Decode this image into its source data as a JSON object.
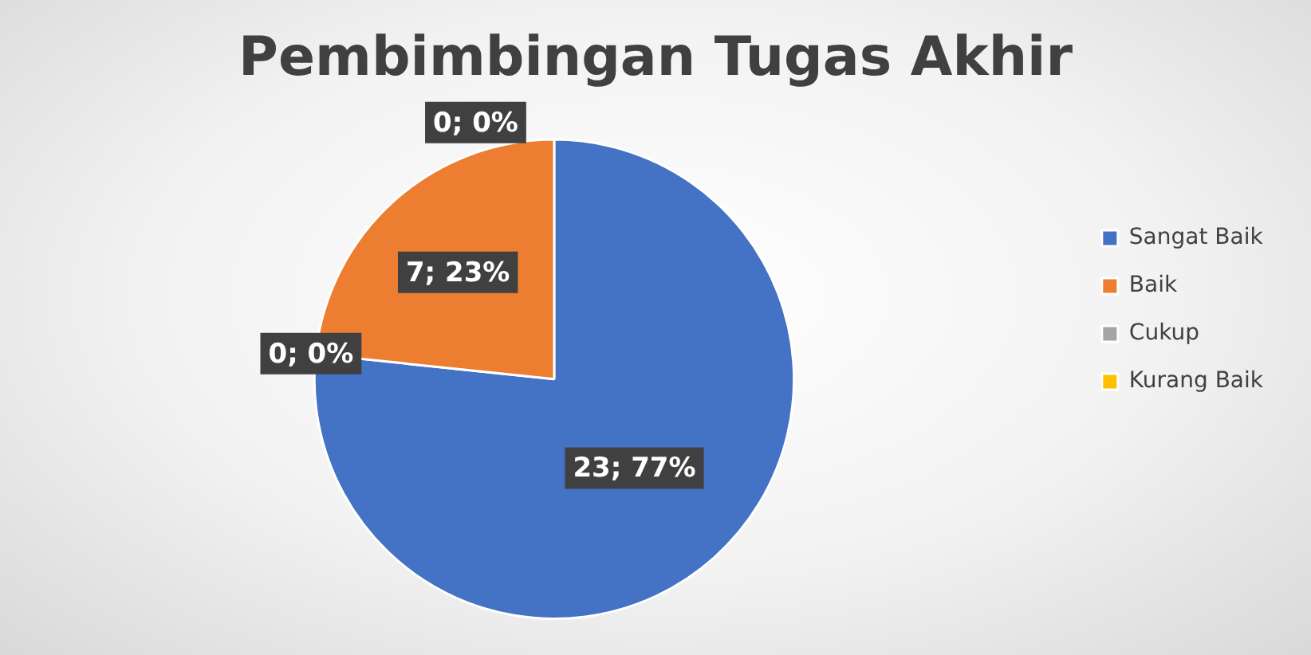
{
  "chart_data": {
    "type": "pie",
    "title": "Pembimbingan Tugas Akhir",
    "categories": [
      "Sangat Baik",
      "Baik",
      "Cukup",
      "Kurang Baik"
    ],
    "values": [
      23,
      7,
      0,
      0
    ],
    "colors": [
      "#4472c4",
      "#ed7d31",
      "#a5a5a5",
      "#ffc000"
    ],
    "value_labels": [
      "23; 77%",
      "7; 23%",
      "0; 0%",
      "0; 0%"
    ],
    "legend": "right"
  }
}
